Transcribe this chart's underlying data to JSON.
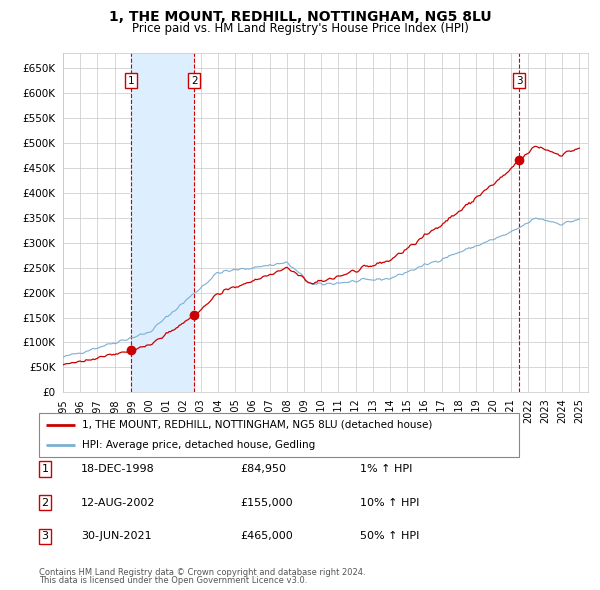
{
  "title": "1, THE MOUNT, REDHILL, NOTTINGHAM, NG5 8LU",
  "subtitle": "Price paid vs. HM Land Registry's House Price Index (HPI)",
  "ytick_values": [
    0,
    50000,
    100000,
    150000,
    200000,
    250000,
    300000,
    350000,
    400000,
    450000,
    500000,
    550000,
    600000,
    650000
  ],
  "ylim": [
    0,
    680000
  ],
  "xlim_start": 1995.0,
  "xlim_end": 2025.5,
  "legend_line1": "1, THE MOUNT, REDHILL, NOTTINGHAM, NG5 8LU (detached house)",
  "legend_line2": "HPI: Average price, detached house, Gedling",
  "sale_dates": [
    1998.96,
    2002.62,
    2021.5
  ],
  "sale_prices": [
    84950,
    155000,
    465000
  ],
  "sale_labels": [
    "1",
    "2",
    "3"
  ],
  "table_rows": [
    [
      "1",
      "18-DEC-1998",
      "£84,950",
      "1% ↑ HPI"
    ],
    [
      "2",
      "12-AUG-2002",
      "£155,000",
      "10% ↑ HPI"
    ],
    [
      "3",
      "30-JUN-2021",
      "£465,000",
      "50% ↑ HPI"
    ]
  ],
  "footnote1": "Contains HM Land Registry data © Crown copyright and database right 2024.",
  "footnote2": "This data is licensed under the Open Government Licence v3.0.",
  "hpi_color": "#7bafd4",
  "price_color": "#cc0000",
  "sale_marker_color": "#cc0000",
  "vline_color": "#cc0000",
  "shade_color": "#ddeeff",
  "grid_color": "#c8c8c8",
  "background_color": "#ffffff"
}
